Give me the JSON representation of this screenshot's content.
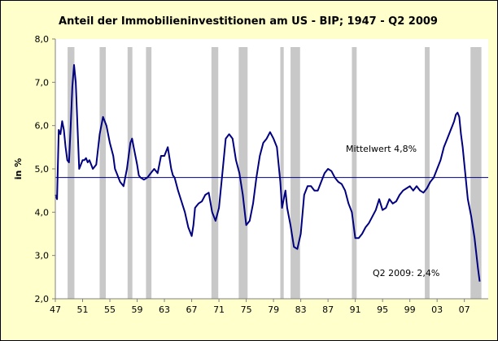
{
  "chart_data": {
    "type": "line",
    "title": "Anteil der Immobilieninvestitionen am US - BIP; 1947 - Q2 2009",
    "xlabel": "",
    "ylabel": "in %",
    "xlim": [
      1947,
      2010.5
    ],
    "ylim": [
      2.0,
      8.0
    ],
    "x_ticks": [
      1947,
      1951,
      1955,
      1959,
      1963,
      1967,
      1971,
      1975,
      1979,
      1983,
      1987,
      1991,
      1995,
      1999,
      2003,
      2007
    ],
    "x_tick_labels": [
      "47",
      "51",
      "55",
      "59",
      "63",
      "67",
      "71",
      "75",
      "79",
      "83",
      "87",
      "91",
      "95",
      "99",
      "03",
      "07"
    ],
    "y_ticks": [
      2.0,
      3.0,
      4.0,
      5.0,
      6.0,
      7.0,
      8.0
    ],
    "y_tick_labels": [
      "2,0",
      "3,0",
      "4,0",
      "5,0",
      "6,0",
      "7,0",
      "8,0"
    ],
    "grid": false,
    "legend": "none",
    "recessions": [
      [
        1948.8,
        1949.8
      ],
      [
        1953.5,
        1954.4
      ],
      [
        1957.6,
        1958.3
      ],
      [
        1960.3,
        1961.1
      ],
      [
        1969.9,
        1970.9
      ],
      [
        1973.9,
        1975.2
      ],
      [
        1980.0,
        1980.5
      ],
      [
        1981.5,
        1982.9
      ],
      [
        1990.5,
        1991.2
      ],
      [
        2001.2,
        2001.9
      ],
      [
        2007.9,
        2009.5
      ]
    ],
    "mean_line": {
      "value": 4.8,
      "label": "Mittelwert 4,8%"
    },
    "end_label": "Q2 2009: 2,4%",
    "series": [
      {
        "color": "#000080",
        "x": [
          1947.0,
          1947.25,
          1947.5,
          1947.75,
          1948.0,
          1948.25,
          1948.5,
          1948.75,
          1949.0,
          1949.25,
          1949.5,
          1949.75,
          1950.0,
          1950.25,
          1950.5,
          1950.75,
          1951.0,
          1951.25,
          1951.5,
          1951.75,
          1952.0,
          1952.5,
          1953.0,
          1953.5,
          1954.0,
          1954.5,
          1955.0,
          1955.5,
          1955.75,
          1956.0,
          1956.5,
          1957.0,
          1957.5,
          1958.0,
          1958.25,
          1958.5,
          1958.75,
          1959.0,
          1959.25,
          1959.5,
          1960.0,
          1960.5,
          1961.0,
          1961.5,
          1962.0,
          1962.5,
          1963.0,
          1963.5,
          1964.0,
          1964.25,
          1964.5,
          1965.0,
          1965.5,
          1966.0,
          1966.5,
          1967.0,
          1967.25,
          1967.5,
          1968.0,
          1968.5,
          1969.0,
          1969.5,
          1970.0,
          1970.5,
          1971.0,
          1971.5,
          1972.0,
          1972.5,
          1973.0,
          1973.5,
          1974.0,
          1974.5,
          1975.0,
          1975.5,
          1976.0,
          1976.5,
          1977.0,
          1977.5,
          1978.0,
          1978.5,
          1979.0,
          1979.5,
          1980.0,
          1980.25,
          1980.5,
          1980.75,
          1981.0,
          1981.5,
          1982.0,
          1982.5,
          1983.0,
          1983.5,
          1984.0,
          1984.5,
          1985.0,
          1985.5,
          1986.0,
          1986.5,
          1987.0,
          1987.5,
          1988.0,
          1988.5,
          1989.0,
          1989.5,
          1990.0,
          1990.5,
          1991.0,
          1991.5,
          1992.0,
          1992.5,
          1993.0,
          1993.5,
          1994.0,
          1994.5,
          1995.0,
          1995.5,
          1996.0,
          1996.5,
          1997.0,
          1997.5,
          1998.0,
          1998.5,
          1999.0,
          1999.5,
          2000.0,
          2000.5,
          2001.0,
          2001.5,
          2002.0,
          2002.5,
          2003.0,
          2003.5,
          2004.0,
          2004.5,
          2005.0,
          2005.25,
          2005.5,
          2005.75,
          2006.0,
          2006.25,
          2006.5,
          2006.75,
          2007.0,
          2007.5,
          2008.0,
          2008.5,
          2009.0,
          2009.25
        ],
        "values": [
          4.4,
          4.3,
          5.9,
          5.8,
          6.1,
          5.9,
          5.5,
          5.2,
          5.15,
          6.0,
          6.9,
          7.4,
          7.0,
          6.0,
          5.0,
          5.1,
          5.2,
          5.2,
          5.25,
          5.15,
          5.2,
          5.0,
          5.1,
          5.8,
          6.2,
          6.0,
          5.6,
          5.3,
          5.0,
          4.9,
          4.7,
          4.6,
          5.0,
          5.6,
          5.7,
          5.5,
          5.3,
          5.1,
          4.85,
          4.8,
          4.75,
          4.8,
          4.9,
          5.0,
          4.9,
          5.3,
          5.3,
          5.5,
          5.0,
          4.85,
          4.8,
          4.5,
          4.25,
          4.0,
          3.65,
          3.45,
          3.7,
          4.1,
          4.2,
          4.25,
          4.4,
          4.45,
          4.0,
          3.8,
          4.1,
          4.9,
          5.7,
          5.8,
          5.7,
          5.2,
          4.9,
          4.4,
          3.7,
          3.8,
          4.2,
          4.8,
          5.3,
          5.6,
          5.7,
          5.85,
          5.7,
          5.5,
          4.7,
          4.1,
          4.3,
          4.5,
          4.1,
          3.7,
          3.2,
          3.15,
          3.5,
          4.4,
          4.6,
          4.6,
          4.5,
          4.5,
          4.7,
          4.9,
          5.0,
          4.95,
          4.8,
          4.7,
          4.65,
          4.5,
          4.2,
          4.0,
          3.4,
          3.4,
          3.5,
          3.65,
          3.75,
          3.9,
          4.05,
          4.3,
          4.05,
          4.1,
          4.3,
          4.2,
          4.25,
          4.4,
          4.5,
          4.55,
          4.6,
          4.5,
          4.6,
          4.5,
          4.45,
          4.55,
          4.7,
          4.8,
          5.0,
          5.2,
          5.5,
          5.7,
          5.9,
          6.0,
          6.1,
          6.25,
          6.3,
          6.2,
          5.8,
          5.5,
          5.1,
          4.3,
          3.9,
          3.4,
          2.7,
          2.4
        ]
      }
    ]
  }
}
